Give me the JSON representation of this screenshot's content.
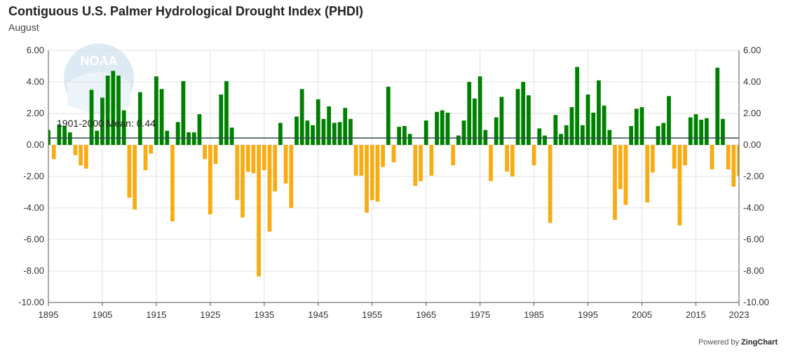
{
  "header": {
    "title": "Contiguous U.S. Palmer Hydrological Drought Index (PHDI)",
    "subtitle": "August"
  },
  "credit": {
    "text": "Powered by",
    "brand": "ZingChart"
  },
  "watermark": {
    "text": "NOAA"
  },
  "colors": {
    "positive": "#008000",
    "negative": "#F9AB12",
    "mean_line": "#2f4f4f",
    "grid": "#e0e0e0"
  },
  "chart_data": {
    "type": "bar",
    "ylim": [
      -10,
      6
    ],
    "y_ticks": [
      "-10.00",
      "-8.00",
      "-6.00",
      "-4.00",
      "-2.00",
      "0.00",
      "2.00",
      "4.00",
      "6.00"
    ],
    "x_ticks": [
      "1895",
      "1905",
      "1915",
      "1925",
      "1935",
      "1945",
      "1955",
      "1965",
      "1975",
      "1985",
      "1995",
      "2005",
      "2015",
      "2023"
    ],
    "mean": {
      "label": "1901-2000 Mean: 0.44",
      "value": 0.44
    },
    "grid": true,
    "x": [
      1895,
      1896,
      1897,
      1898,
      1899,
      1900,
      1901,
      1902,
      1903,
      1904,
      1905,
      1906,
      1907,
      1908,
      1909,
      1910,
      1911,
      1912,
      1913,
      1914,
      1915,
      1916,
      1917,
      1918,
      1919,
      1920,
      1921,
      1922,
      1923,
      1924,
      1925,
      1926,
      1927,
      1928,
      1929,
      1930,
      1931,
      1932,
      1933,
      1934,
      1935,
      1936,
      1937,
      1938,
      1939,
      1940,
      1941,
      1942,
      1943,
      1944,
      1945,
      1946,
      1947,
      1948,
      1949,
      1950,
      1951,
      1952,
      1953,
      1954,
      1955,
      1956,
      1957,
      1958,
      1959,
      1960,
      1961,
      1962,
      1963,
      1964,
      1965,
      1966,
      1967,
      1968,
      1969,
      1970,
      1971,
      1972,
      1973,
      1974,
      1975,
      1976,
      1977,
      1978,
      1979,
      1980,
      1981,
      1982,
      1983,
      1984,
      1985,
      1986,
      1987,
      1988,
      1989,
      1990,
      1991,
      1992,
      1993,
      1994,
      1995,
      1996,
      1997,
      1998,
      1999,
      2000,
      2001,
      2002,
      2003,
      2004,
      2005,
      2006,
      2007,
      2008,
      2009,
      2010,
      2011,
      2012,
      2013,
      2014,
      2015,
      2016,
      2017,
      2018,
      2019,
      2020,
      2021,
      2022,
      2023
    ],
    "values": [
      0.95,
      -0.9,
      1.3,
      1.2,
      0.8,
      -0.65,
      -1.3,
      -1.5,
      3.5,
      0.9,
      3.0,
      4.4,
      4.7,
      4.4,
      2.2,
      -3.35,
      -4.1,
      3.35,
      -1.6,
      -0.55,
      4.35,
      3.55,
      0.9,
      -4.85,
      1.45,
      4.05,
      0.8,
      0.8,
      1.95,
      -0.9,
      -4.4,
      -1.2,
      3.2,
      4.05,
      1.1,
      -3.5,
      -4.6,
      -1.7,
      -1.8,
      -8.35,
      -1.6,
      -5.5,
      -2.95,
      1.4,
      -2.45,
      -4.0,
      1.8,
      3.55,
      1.55,
      1.25,
      2.9,
      1.65,
      2.45,
      1.4,
      1.45,
      2.35,
      1.65,
      -1.95,
      -1.95,
      -4.3,
      -3.5,
      -3.6,
      -1.4,
      3.7,
      -1.1,
      1.15,
      1.2,
      0.7,
      -2.6,
      -2.3,
      1.55,
      -1.95,
      2.1,
      2.2,
      2.05,
      -1.3,
      0.6,
      1.55,
      4.0,
      2.95,
      4.35,
      0.95,
      -2.3,
      1.75,
      3.05,
      -1.7,
      -2.0,
      3.55,
      4.0,
      3.15,
      -1.3,
      1.05,
      0.6,
      -4.95,
      1.9,
      0.7,
      1.25,
      2.4,
      4.95,
      1.25,
      3.2,
      2.05,
      4.1,
      2.5,
      0.95,
      -4.75,
      -2.8,
      -3.8,
      1.2,
      2.3,
      2.4,
      -3.65,
      -1.75,
      1.2,
      1.4,
      3.1,
      -1.5,
      -5.1,
      -1.3,
      1.75,
      1.95,
      1.6,
      1.7,
      -1.55,
      4.9,
      1.65,
      -1.55,
      -2.65,
      -1.95
    ]
  }
}
